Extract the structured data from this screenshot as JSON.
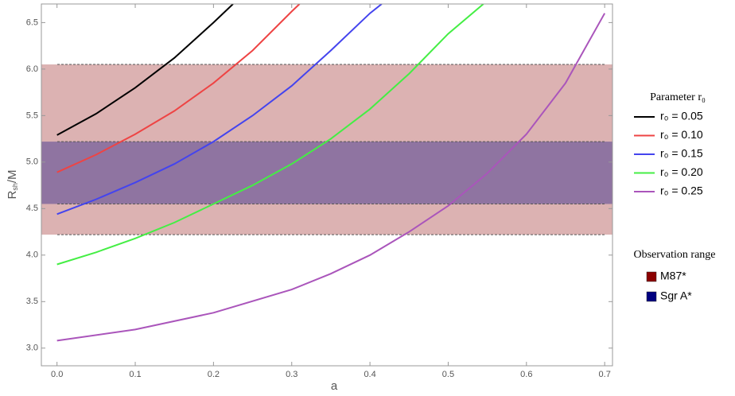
{
  "chart_data": {
    "type": "line",
    "x_label": "a",
    "y_label": {
      "base": "R",
      "sub": "sh",
      "rest": "/M"
    },
    "xlim": [
      -0.02,
      0.71
    ],
    "ylim": [
      2.81,
      6.7
    ],
    "xticks": [
      {
        "value": 0,
        "label": "0.0"
      },
      0.1,
      0.2,
      0.3,
      0.4,
      0.5,
      0.6,
      0.7
    ],
    "yticks": [
      {
        "value": 3,
        "label": "3.0"
      },
      3.5,
      {
        "value": 4,
        "label": "4.0"
      },
      4.5,
      {
        "value": 5,
        "label": "5.0"
      },
      5.5,
      {
        "value": 6,
        "label": "6.0"
      },
      6.5
    ],
    "legend_title": "Parameter r₀",
    "bands_title": "Observation range",
    "bands": [
      {
        "name": "M87*",
        "color": "#8b0000",
        "range": [
          4.22,
          6.05
        ]
      },
      {
        "name": "Sgr A*",
        "color": "#000080",
        "range": [
          4.55,
          5.22
        ]
      }
    ],
    "series": [
      {
        "name": "r₀ = 0.05",
        "color": "#000000",
        "x": [
          0,
          0.05,
          0.1,
          0.15,
          0.2,
          0.225
        ],
        "values": [
          5.29,
          5.52,
          5.8,
          6.12,
          6.5,
          6.7
        ]
      },
      {
        "name": "r₀ = 0.10",
        "color": "#ee4444",
        "x": [
          0,
          0.05,
          0.1,
          0.15,
          0.2,
          0.25,
          0.3,
          0.31
        ],
        "values": [
          4.89,
          5.08,
          5.3,
          5.55,
          5.85,
          6.2,
          6.62,
          6.7
        ]
      },
      {
        "name": "r₀ = 0.15",
        "color": "#4444ee",
        "x": [
          0,
          0.05,
          0.1,
          0.15,
          0.2,
          0.25,
          0.3,
          0.35,
          0.4,
          0.415
        ],
        "values": [
          4.44,
          4.6,
          4.78,
          4.98,
          5.22,
          5.5,
          5.82,
          6.2,
          6.6,
          6.7
        ]
      },
      {
        "name": "r₀ = 0.20",
        "color": "#44ee44",
        "x": [
          0,
          0.05,
          0.1,
          0.15,
          0.2,
          0.25,
          0.3,
          0.35,
          0.4,
          0.45,
          0.5,
          0.545
        ],
        "values": [
          3.9,
          4.03,
          4.18,
          4.35,
          4.55,
          4.75,
          4.98,
          5.25,
          5.57,
          5.95,
          6.38,
          6.7
        ]
      },
      {
        "name": "r₀ = 0.25",
        "color": "#aa55bb",
        "x": [
          0,
          0.1,
          0.2,
          0.3,
          0.35,
          0.4,
          0.45,
          0.5,
          0.55,
          0.6,
          0.65,
          0.7
        ],
        "values": [
          3.08,
          3.2,
          3.38,
          3.63,
          3.8,
          4.0,
          4.25,
          4.53,
          4.88,
          5.3,
          5.85,
          6.6
        ]
      }
    ]
  }
}
